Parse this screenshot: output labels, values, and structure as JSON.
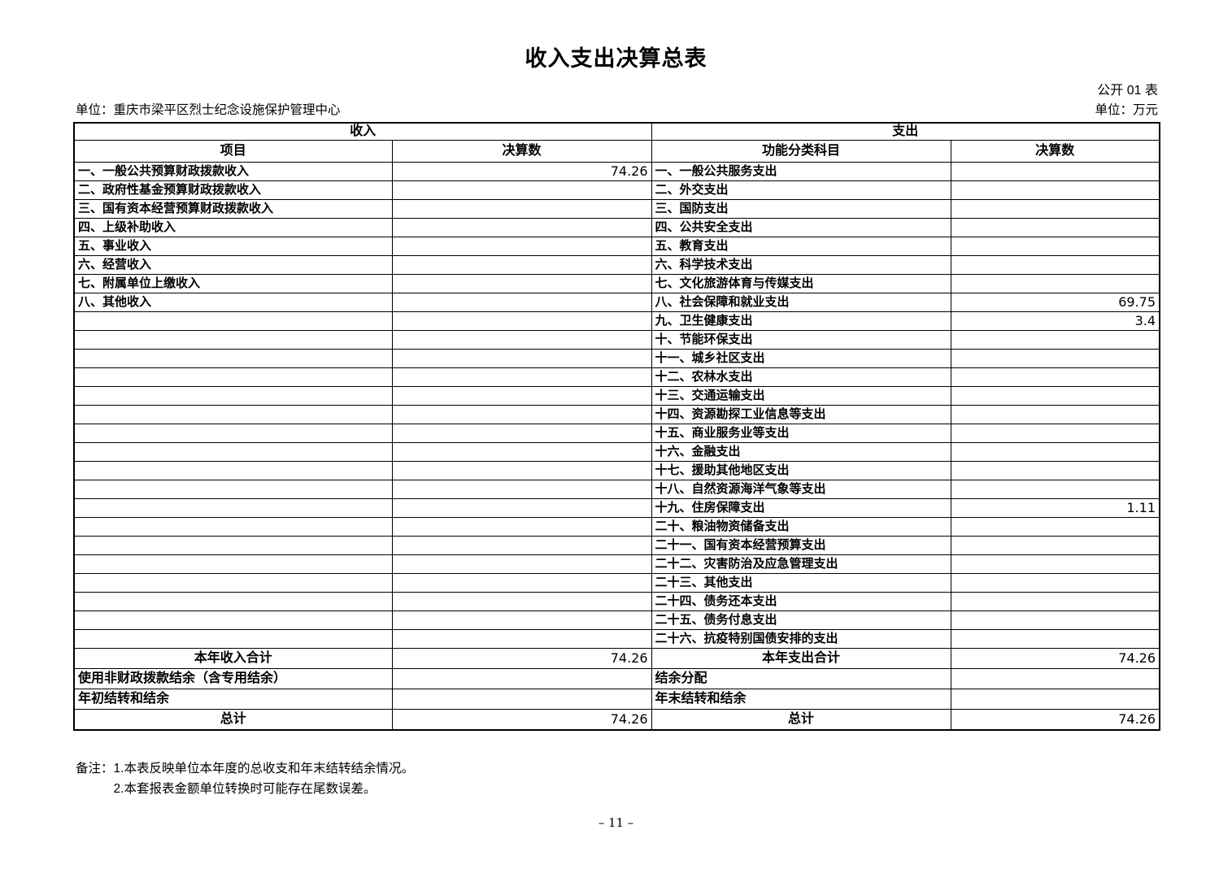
{
  "page": {
    "title": "收入支出决算总表",
    "doc_label": "公开 01 表",
    "unit_name": "单位：重庆市梁平区烈士纪念设施保护管理中心",
    "unit_measure": "单位：万元",
    "page_number": "– 11 –"
  },
  "table": {
    "income_header": "收入",
    "expense_header": "支出",
    "columns": [
      "项目",
      "决算数",
      "功能分类科目",
      "决算数"
    ],
    "rows": [
      [
        "一、一般公共预算财政拨款收入",
        "74.26",
        "一、一般公共服务支出",
        ""
      ],
      [
        "二、政府性基金预算财政拨款收入",
        "",
        "二、外交支出",
        ""
      ],
      [
        "三、国有资本经营预算财政拨款收入",
        "",
        "三、国防支出",
        ""
      ],
      [
        "四、上级补助收入",
        "",
        "四、公共安全支出",
        ""
      ],
      [
        "五、事业收入",
        "",
        "五、教育支出",
        ""
      ],
      [
        "六、经营收入",
        "",
        "六、科学技术支出",
        ""
      ],
      [
        "七、附属单位上缴收入",
        "",
        "七、文化旅游体育与传媒支出",
        ""
      ],
      [
        "八、其他收入",
        "",
        "八、社会保障和就业支出",
        "69.75"
      ],
      [
        "",
        "",
        "九、卫生健康支出",
        "3.4"
      ],
      [
        "",
        "",
        "十、节能环保支出",
        ""
      ],
      [
        "",
        "",
        "十一、城乡社区支出",
        ""
      ],
      [
        "",
        "",
        "十二、农林水支出",
        ""
      ],
      [
        "",
        "",
        "十三、交通运输支出",
        ""
      ],
      [
        "",
        "",
        "十四、资源勘探工业信息等支出",
        ""
      ],
      [
        "",
        "",
        "十五、商业服务业等支出",
        ""
      ],
      [
        "",
        "",
        "十六、金融支出",
        ""
      ],
      [
        "",
        "",
        "十七、援助其他地区支出",
        ""
      ],
      [
        "",
        "",
        "十八、自然资源海洋气象等支出",
        ""
      ],
      [
        "",
        "",
        "十九、住房保障支出",
        "1.11"
      ],
      [
        "",
        "",
        "二十、粮油物资储备支出",
        ""
      ],
      [
        "",
        "",
        "二十一、国有资本经营预算支出",
        ""
      ],
      [
        "",
        "",
        "二十二、灾害防治及应急管理支出",
        ""
      ],
      [
        "",
        "",
        "二十三、其他支出",
        ""
      ],
      [
        "",
        "",
        "二十四、债务还本支出",
        ""
      ],
      [
        "",
        "",
        "二十五、债务付息支出",
        ""
      ],
      [
        "",
        "",
        "二十六、抗疫特别国债安排的支出",
        ""
      ]
    ],
    "summary_rows": [
      {
        "cells": [
          "本年收入合计",
          "74.26",
          "本年支出合计",
          "74.26"
        ],
        "align": [
          "center",
          "right",
          "center",
          "right"
        ]
      },
      {
        "cells": [
          "使用非财政拨款结余（含专用结余）",
          "",
          "结余分配",
          ""
        ],
        "align": [
          "left",
          "right",
          "left",
          "right"
        ]
      },
      {
        "cells": [
          "年初结转和结余",
          "",
          "年末结转和结余",
          ""
        ],
        "align": [
          "left",
          "right",
          "left",
          "right"
        ]
      },
      {
        "cells": [
          "总计",
          "74.26",
          "总计",
          "74.26"
        ],
        "align": [
          "center",
          "right",
          "center",
          "right"
        ]
      }
    ]
  },
  "notes": {
    "prefix": "备注：",
    "line1": "1.本表反映单位本年度的总收支和年末结转结余情况。",
    "line2": "2.本套报表金额单位转换时可能存在尾数误差。"
  }
}
